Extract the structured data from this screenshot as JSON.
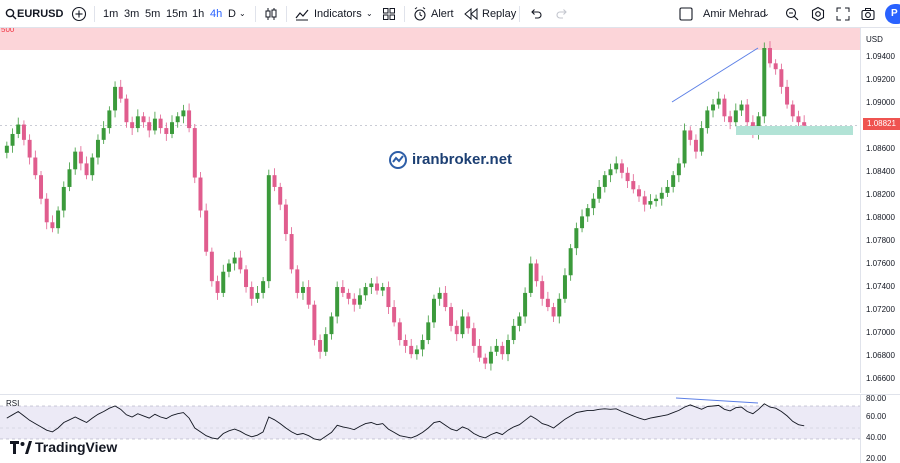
{
  "toolbar": {
    "symbol": "EURUSD",
    "intervals": [
      "1m",
      "3m",
      "5m",
      "15m",
      "1h",
      "4h",
      "D"
    ],
    "active_interval": "4h",
    "indicators_label": "Indicators",
    "alert_label": "Alert",
    "replay_label": "Replay",
    "user_name": "Amir Mehrad",
    "publish_label": "P"
  },
  "chart": {
    "currency": "USD",
    "current_price_label": "1.08821",
    "zone_label": "500",
    "watermark": "iranbroker.net",
    "brand": "TradingView",
    "price_ticks": [
      "1.09400",
      "1.09200",
      "1.09000",
      "1.08600",
      "1.08400",
      "1.08200",
      "1.08000",
      "1.07800",
      "1.07600",
      "1.07400",
      "1.07200",
      "1.07000",
      "1.06800",
      "1.06600"
    ],
    "rsi_label": "RSI",
    "rsi_ticks": [
      "80.00",
      "60.00",
      "40.00",
      "20.00"
    ],
    "colors": {
      "up": "#26a69a",
      "down": "#ef5350",
      "bull": "#3b9a3b",
      "bear": "#e05d8e",
      "trend": "#5b7fe6",
      "zone": "#fcd5d9",
      "support": "#b2e3d6"
    }
  },
  "chart_data": {
    "type": "candlestick",
    "symbol": "EURUSD",
    "timeframe": "4h",
    "ylim": [
      1.0655,
      1.0965
    ],
    "last_price": 1.08821,
    "closes": [
      1.0865,
      1.0875,
      1.0883,
      1.087,
      1.0855,
      1.084,
      1.082,
      1.08,
      1.0795,
      1.081,
      1.083,
      1.0845,
      1.086,
      1.085,
      1.084,
      1.0855,
      1.087,
      1.088,
      1.0895,
      1.0915,
      1.0905,
      1.0885,
      1.088,
      1.089,
      1.0885,
      1.0878,
      1.0888,
      1.088,
      1.0875,
      1.0885,
      1.089,
      1.0895,
      1.088,
      1.0838,
      1.081,
      1.0775,
      1.075,
      1.074,
      1.0758,
      1.0765,
      1.077,
      1.076,
      1.0745,
      1.0735,
      1.074,
      1.075,
      1.084,
      1.083,
      1.0815,
      1.079,
      1.076,
      1.074,
      1.0745,
      1.073,
      1.07,
      1.069,
      1.0705,
      1.072,
      1.0745,
      1.074,
      1.0735,
      1.073,
      1.0738,
      1.0745,
      1.0748,
      1.0742,
      1.0745,
      1.0728,
      1.0715,
      1.07,
      1.0695,
      1.0688,
      1.0692,
      1.07,
      1.0715,
      1.0735,
      1.074,
      1.0728,
      1.0712,
      1.0705,
      1.072,
      1.071,
      1.0695,
      1.0685,
      1.068,
      1.069,
      1.0695,
      1.0688,
      1.07,
      1.0712,
      1.072,
      1.074,
      1.0765,
      1.075,
      1.0735,
      1.0728,
      1.072,
      1.0735,
      1.0755,
      1.0778,
      1.0795,
      1.0805,
      1.0812,
      1.082,
      1.083,
      1.084,
      1.0845,
      1.085,
      1.0842,
      1.0835,
      1.0828,
      1.0822,
      1.0815,
      1.0818,
      1.082,
      1.0825,
      1.083,
      1.084,
      1.085,
      1.0878,
      1.087,
      1.086,
      1.088,
      1.0895,
      1.09,
      1.0905,
      1.089,
      1.0885,
      1.0895,
      1.09,
      1.0885,
      1.0875,
      1.089,
      1.0948,
      1.0935,
      1.093,
      1.0915,
      1.09,
      1.089,
      1.0885,
      1.0882
    ],
    "rsi": [
      58,
      64,
      70,
      62,
      54,
      48,
      42,
      36,
      33,
      40,
      50,
      55,
      60,
      55,
      50,
      58,
      65,
      70,
      76,
      80,
      74,
      64,
      60,
      66,
      62,
      58,
      65,
      60,
      57,
      63,
      66,
      68,
      58,
      40,
      33,
      26,
      22,
      20,
      30,
      35,
      38,
      34,
      28,
      24,
      27,
      33,
      60,
      55,
      48,
      40,
      33,
      28,
      30,
      26,
      20,
      18,
      25,
      32,
      45,
      42,
      40,
      37,
      43,
      48,
      50,
      46,
      48,
      38,
      32,
      26,
      24,
      22,
      26,
      32,
      40,
      50,
      52,
      45,
      38,
      35,
      42,
      38,
      30,
      25,
      22,
      28,
      32,
      28,
      36,
      42,
      46,
      54,
      62,
      56,
      48,
      45,
      40,
      48,
      56,
      62,
      68,
      70,
      72,
      72,
      74,
      75,
      74,
      75,
      70,
      66,
      62,
      58,
      55,
      58,
      60,
      62,
      64,
      68,
      72,
      78,
      82,
      78,
      74,
      79,
      80,
      81,
      74,
      71,
      77,
      78,
      70,
      66,
      74,
      84,
      78,
      76,
      70,
      62,
      52,
      46,
      44
    ]
  }
}
